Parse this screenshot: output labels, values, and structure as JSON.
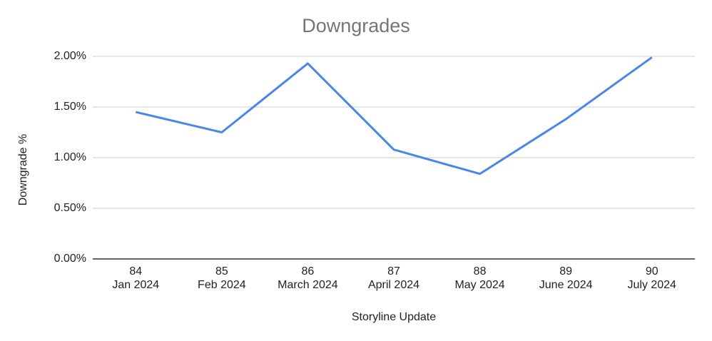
{
  "chart_data": {
    "type": "line",
    "title": "Downgrades",
    "x_label": "Storyline Update",
    "y_label": "Downgrade %",
    "categories": [
      [
        "84",
        "Jan 2024"
      ],
      [
        "85",
        "Feb 2024"
      ],
      [
        "86",
        "March 2024"
      ],
      [
        "87",
        "April 2024"
      ],
      [
        "88",
        "May 2024"
      ],
      [
        "89",
        "June 2024"
      ],
      [
        "90",
        "July 2024"
      ]
    ],
    "series": [
      {
        "name": "Downgrade %",
        "color": "#4a86e8",
        "values": [
          1.45,
          1.25,
          1.93,
          1.08,
          0.84,
          1.38,
          1.99
        ]
      }
    ],
    "ylim": [
      0,
      2
    ],
    "yticks": [
      {
        "value": 0,
        "label": "0.00%"
      },
      {
        "value": 0.5,
        "label": "0.50%"
      },
      {
        "value": 1,
        "label": "1.00%"
      },
      {
        "value": 1.5,
        "label": "1.50%"
      },
      {
        "value": 2,
        "label": "2.00%"
      }
    ],
    "grid": true
  }
}
